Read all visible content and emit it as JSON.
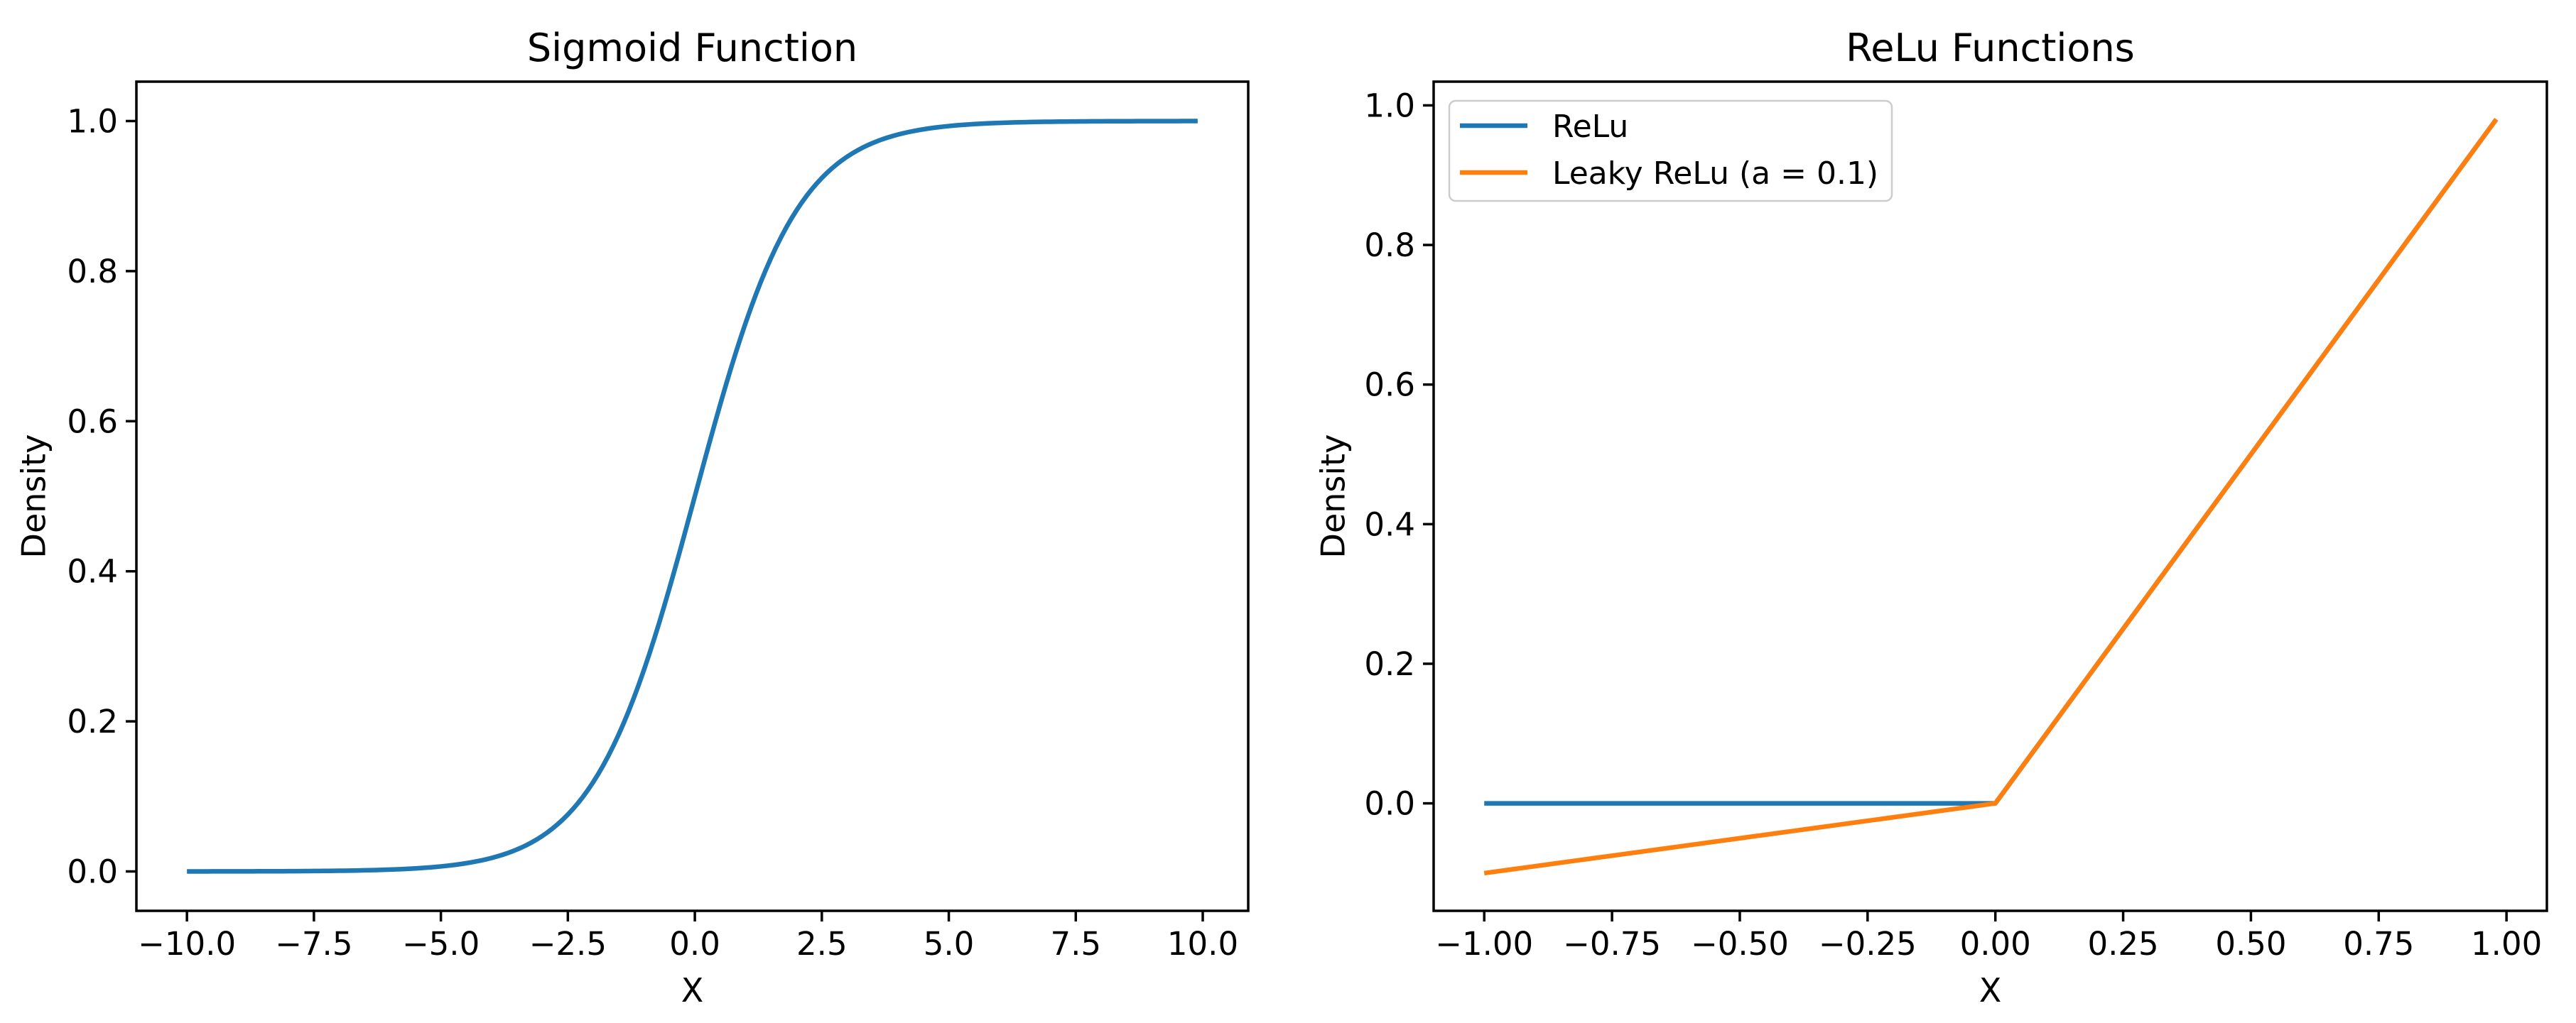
{
  "figure": {
    "background": "#ffffff",
    "text_color": "#000000",
    "axis_color": "#000000",
    "legend_border_color": "#cccccc",
    "legend_bg": "rgba(255,255,255,0.8)",
    "line_colors": {
      "blue": "#1f77b4",
      "orange": "#ff7f0e"
    }
  },
  "chart_data": [
    {
      "type": "line",
      "title": "Sigmoid Function",
      "xlabel": "X",
      "ylabel": "Density",
      "xlim": [
        -10.995,
        10.895
      ],
      "ylim": [
        -0.0525,
        1.0525
      ],
      "grid": false,
      "legend": null,
      "x_ticks": [
        {
          "v": -10.0,
          "label": "−10.0"
        },
        {
          "v": -7.5,
          "label": "−7.5"
        },
        {
          "v": -5.0,
          "label": "−5.0"
        },
        {
          "v": -2.5,
          "label": "−2.5"
        },
        {
          "v": 0.0,
          "label": "0.0"
        },
        {
          "v": 2.5,
          "label": "2.5"
        },
        {
          "v": 5.0,
          "label": "5.0"
        },
        {
          "v": 7.5,
          "label": "7.5"
        },
        {
          "v": 10.0,
          "label": "10.0"
        }
      ],
      "y_ticks": [
        {
          "v": 0.0,
          "label": "0.0"
        },
        {
          "v": 0.2,
          "label": "0.2"
        },
        {
          "v": 0.4,
          "label": "0.4"
        },
        {
          "v": 0.6,
          "label": "0.6"
        },
        {
          "v": 0.8,
          "label": "0.8"
        },
        {
          "v": 1.0,
          "label": "1.0"
        }
      ],
      "series": [
        {
          "name": "Sigmoid",
          "color": "#1f77b4",
          "fn": "sigmoid",
          "x_start": -10,
          "x_end": 9.9,
          "x_step": 0.1
        }
      ]
    },
    {
      "type": "line",
      "title": "ReLu Functions",
      "xlabel": "X",
      "ylabel": "Density",
      "xlim": [
        -1.099,
        1.079
      ],
      "ylim": [
        -0.154,
        1.034
      ],
      "grid": false,
      "legend": {
        "position": "upper left",
        "entries": [
          {
            "label": "ReLu",
            "color": "#1f77b4"
          },
          {
            "label": "Leaky ReLu (a = 0.1)",
            "color": "#ff7f0e"
          }
        ]
      },
      "x_ticks": [
        {
          "v": -1.0,
          "label": "−1.00"
        },
        {
          "v": -0.75,
          "label": "−0.75"
        },
        {
          "v": -0.5,
          "label": "−0.50"
        },
        {
          "v": -0.25,
          "label": "−0.25"
        },
        {
          "v": 0.0,
          "label": "0.00"
        },
        {
          "v": 0.25,
          "label": "0.25"
        },
        {
          "v": 0.5,
          "label": "0.50"
        },
        {
          "v": 0.75,
          "label": "0.75"
        },
        {
          "v": 1.0,
          "label": "1.00"
        }
      ],
      "y_ticks": [
        {
          "v": 0.0,
          "label": "0.0"
        },
        {
          "v": 0.2,
          "label": "0.2"
        },
        {
          "v": 0.4,
          "label": "0.4"
        },
        {
          "v": 0.6,
          "label": "0.6"
        },
        {
          "v": 0.8,
          "label": "0.8"
        },
        {
          "v": 1.0,
          "label": "1.0"
        }
      ],
      "series": [
        {
          "name": "ReLu",
          "color": "#1f77b4",
          "fn": "relu",
          "x_start": -1,
          "x_end": 0.98,
          "x_step": 0.02
        },
        {
          "name": "Leaky ReLu (a = 0.1)",
          "color": "#ff7f0e",
          "fn": "leaky_relu",
          "alpha": 0.1,
          "x_start": -1,
          "x_end": 0.98,
          "x_step": 0.02
        }
      ]
    }
  ]
}
